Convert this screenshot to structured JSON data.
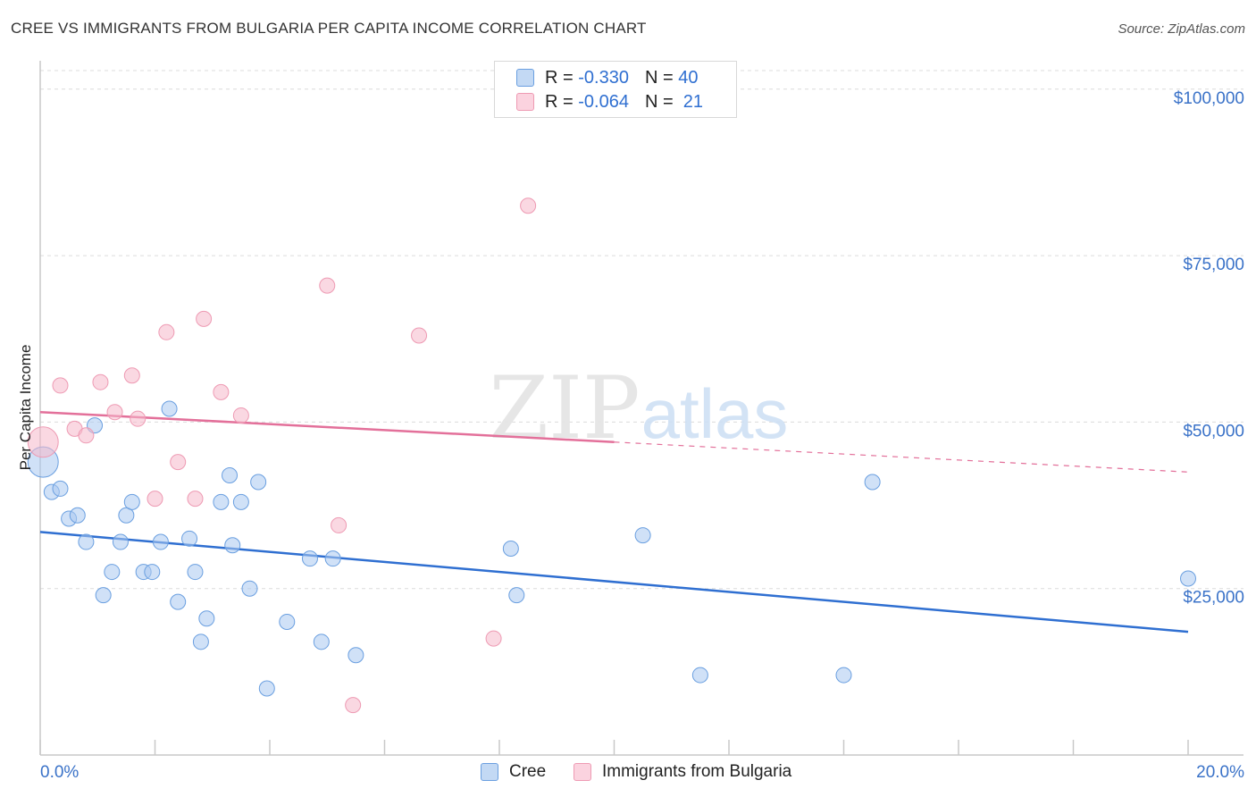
{
  "title": "CREE VS IMMIGRANTS FROM BULGARIA PER CAPITA INCOME CORRELATION CHART",
  "source": "Source: ZipAtlas.com",
  "watermark": {
    "zip": "ZIP",
    "atlas": "atlas"
  },
  "stats": [
    {
      "r_label": "R =",
      "r_value": "-0.330",
      "n_label": "N =",
      "n_value": "40",
      "color": "#a9c9f0"
    },
    {
      "r_label": "R =",
      "r_value": "-0.064",
      "n_label": "N =",
      "n_value": "21",
      "color": "#f6b8cb"
    }
  ],
  "legend": [
    {
      "label": "Cree",
      "color": "#a9c9f0"
    },
    {
      "label": "Immigrants from Bulgaria",
      "color": "#f6b8cb"
    }
  ],
  "chart_data": {
    "type": "scatter",
    "title": "CREE VS IMMIGRANTS FROM BULGARIA PER CAPITA INCOME CORRELATION CHART",
    "xlabel": "",
    "ylabel": "Per Capita Income",
    "xlim": [
      0,
      20
    ],
    "ylim": [
      0,
      104000
    ],
    "x_tick_labels": [
      "0.0%",
      "20.0%"
    ],
    "y_ticks": [
      {
        "value": 25000,
        "label": "$25,000"
      },
      {
        "value": 50000,
        "label": "$50,000"
      },
      {
        "value": 75000,
        "label": "$75,000"
      },
      {
        "value": 100000,
        "label": "$100,000"
      }
    ],
    "grid": true,
    "series": [
      {
        "name": "Cree",
        "color": "#a9c9f0",
        "stroke": "#6a9fe0",
        "trend_color": "#2f6fd1",
        "trend": {
          "x0": 0,
          "y0": 33500,
          "x1": 20,
          "y1": 18500,
          "solid_until": 20
        },
        "points": [
          {
            "x": 0.05,
            "y": 44000,
            "big": true
          },
          {
            "x": 0.2,
            "y": 39500
          },
          {
            "x": 0.35,
            "y": 40000
          },
          {
            "x": 0.5,
            "y": 35500
          },
          {
            "x": 0.65,
            "y": 36000
          },
          {
            "x": 0.8,
            "y": 32000
          },
          {
            "x": 0.95,
            "y": 49500
          },
          {
            "x": 1.1,
            "y": 24000
          },
          {
            "x": 1.25,
            "y": 27500
          },
          {
            "x": 1.4,
            "y": 32000
          },
          {
            "x": 1.5,
            "y": 36000
          },
          {
            "x": 1.6,
            "y": 38000
          },
          {
            "x": 1.8,
            "y": 27500
          },
          {
            "x": 1.95,
            "y": 27500
          },
          {
            "x": 2.1,
            "y": 32000
          },
          {
            "x": 2.25,
            "y": 52000
          },
          {
            "x": 2.4,
            "y": 23000
          },
          {
            "x": 2.6,
            "y": 32500
          },
          {
            "x": 2.7,
            "y": 27500
          },
          {
            "x": 2.8,
            "y": 17000
          },
          {
            "x": 2.9,
            "y": 20500
          },
          {
            "x": 3.15,
            "y": 38000
          },
          {
            "x": 3.3,
            "y": 42000
          },
          {
            "x": 3.35,
            "y": 31500
          },
          {
            "x": 3.5,
            "y": 38000
          },
          {
            "x": 3.65,
            "y": 25000
          },
          {
            "x": 3.8,
            "y": 41000
          },
          {
            "x": 3.95,
            "y": 10000
          },
          {
            "x": 4.3,
            "y": 20000
          },
          {
            "x": 4.7,
            "y": 29500
          },
          {
            "x": 4.9,
            "y": 17000
          },
          {
            "x": 5.1,
            "y": 29500
          },
          {
            "x": 5.5,
            "y": 15000
          },
          {
            "x": 8.2,
            "y": 31000
          },
          {
            "x": 8.3,
            "y": 24000
          },
          {
            "x": 10.5,
            "y": 33000
          },
          {
            "x": 11.5,
            "y": 12000
          },
          {
            "x": 14.0,
            "y": 12000
          },
          {
            "x": 14.5,
            "y": 41000
          },
          {
            "x": 20.0,
            "y": 26500
          }
        ]
      },
      {
        "name": "Immigrants from Bulgaria",
        "color": "#f6b8cb",
        "stroke": "#ee9ab3",
        "trend_color": "#e3709a",
        "trend": {
          "x0": 0,
          "y0": 51500,
          "x1": 20,
          "y1": 42500,
          "solid_until": 10
        },
        "points": [
          {
            "x": 0.05,
            "y": 47000,
            "big": true
          },
          {
            "x": 0.35,
            "y": 55500
          },
          {
            "x": 0.6,
            "y": 49000
          },
          {
            "x": 0.8,
            "y": 48000
          },
          {
            "x": 1.05,
            "y": 56000
          },
          {
            "x": 1.3,
            "y": 51500
          },
          {
            "x": 1.6,
            "y": 57000
          },
          {
            "x": 1.7,
            "y": 50500
          },
          {
            "x": 2.0,
            "y": 38500
          },
          {
            "x": 2.2,
            "y": 63500
          },
          {
            "x": 2.4,
            "y": 44000
          },
          {
            "x": 2.7,
            "y": 38500
          },
          {
            "x": 2.85,
            "y": 65500
          },
          {
            "x": 3.15,
            "y": 54500
          },
          {
            "x": 3.5,
            "y": 51000
          },
          {
            "x": 5.0,
            "y": 70500
          },
          {
            "x": 5.2,
            "y": 34500
          },
          {
            "x": 5.45,
            "y": 7500
          },
          {
            "x": 6.6,
            "y": 63000
          },
          {
            "x": 7.9,
            "y": 17500
          },
          {
            "x": 8.5,
            "y": 82500
          }
        ]
      }
    ]
  }
}
